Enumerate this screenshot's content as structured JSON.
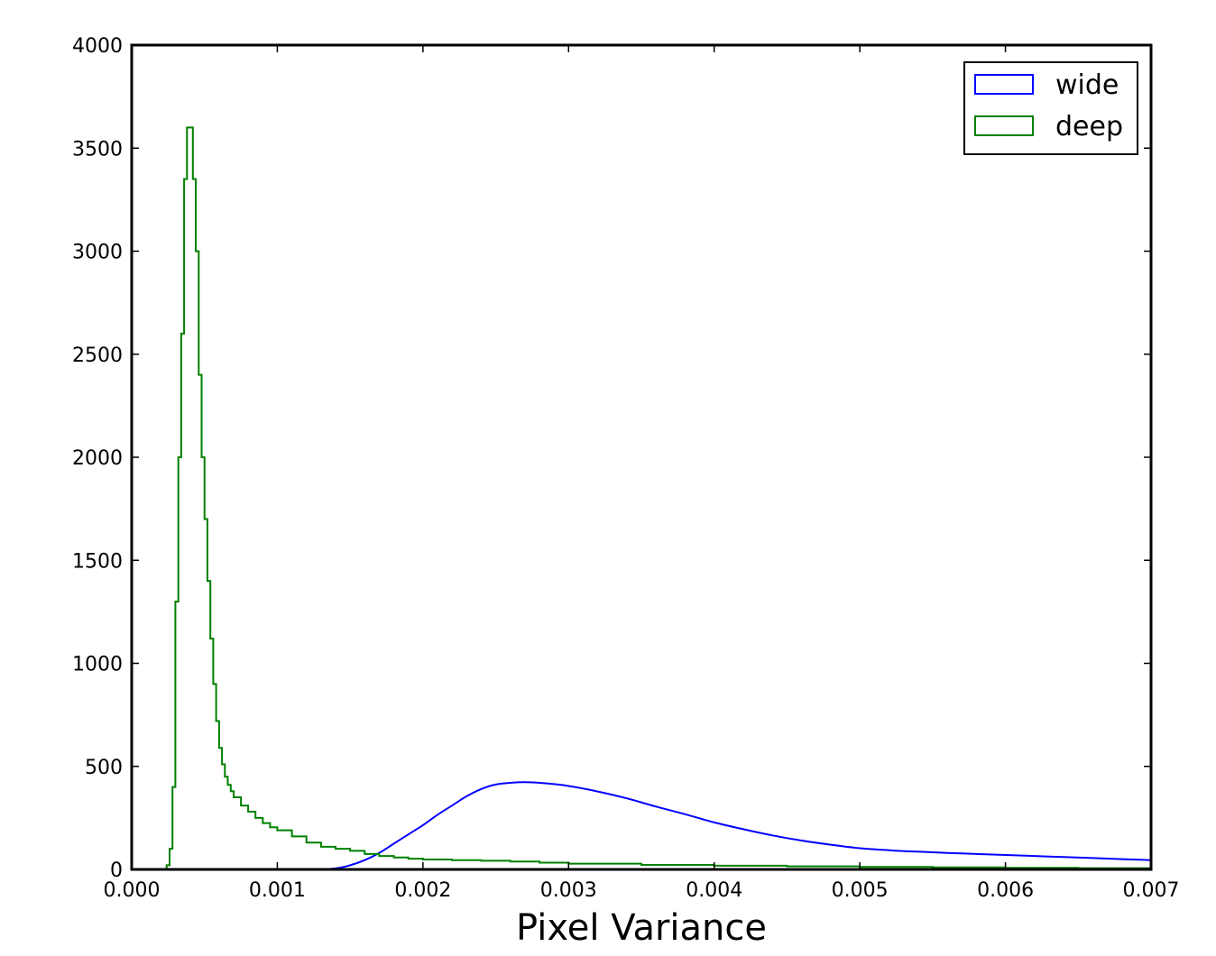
{
  "chart_data": {
    "type": "line",
    "title": "",
    "xlabel": "Pixel Variance",
    "ylabel": "",
    "xlim": [
      0.0,
      0.007
    ],
    "ylim": [
      0,
      4000
    ],
    "x_ticks": [
      "0.000",
      "0.001",
      "0.002",
      "0.003",
      "0.004",
      "0.005",
      "0.006",
      "0.007"
    ],
    "y_ticks": [
      "0",
      "500",
      "1000",
      "1500",
      "2000",
      "2500",
      "3000",
      "3500",
      "4000"
    ],
    "grid": false,
    "legend_position": "top-right",
    "series": [
      {
        "name": "wide",
        "color": "#0000ff",
        "style": "smooth",
        "x": [
          0.0013,
          0.0014,
          0.0015,
          0.0016,
          0.0017,
          0.0018,
          0.0019,
          0.002,
          0.0021,
          0.0022,
          0.0023,
          0.0024,
          0.0025,
          0.0026,
          0.0027,
          0.0028,
          0.0029,
          0.003,
          0.0032,
          0.0034,
          0.0036,
          0.0038,
          0.004,
          0.0042,
          0.0044,
          0.0046,
          0.0048,
          0.005,
          0.0052,
          0.0054,
          0.0056,
          0.0058,
          0.006,
          0.0062,
          0.0064,
          0.0066,
          0.0068,
          0.007
        ],
        "y": [
          0,
          5,
          20,
          45,
          80,
          125,
          170,
          215,
          265,
          310,
          355,
          390,
          412,
          420,
          423,
          420,
          414,
          405,
          378,
          345,
          305,
          268,
          228,
          195,
          165,
          140,
          120,
          103,
          93,
          86,
          80,
          75,
          70,
          65,
          60,
          55,
          50,
          45
        ]
      },
      {
        "name": "deep",
        "color": "#008000",
        "style": "step",
        "x": [
          0.0002,
          0.00022,
          0.00024,
          0.00026,
          0.00028,
          0.0003,
          0.00032,
          0.00034,
          0.00036,
          0.00038,
          0.0004,
          0.00042,
          0.00044,
          0.00046,
          0.00048,
          0.0005,
          0.00052,
          0.00054,
          0.00056,
          0.00058,
          0.0006,
          0.00062,
          0.00064,
          0.00066,
          0.00068,
          0.0007,
          0.00075,
          0.0008,
          0.00085,
          0.0009,
          0.00095,
          0.001,
          0.0011,
          0.0012,
          0.0013,
          0.0014,
          0.0015,
          0.0016,
          0.0017,
          0.0018,
          0.0019,
          0.002,
          0.0022,
          0.0024,
          0.0026,
          0.0028,
          0.003,
          0.0035,
          0.004,
          0.0045,
          0.005,
          0.0055,
          0.006,
          0.0065,
          0.007
        ],
        "y": [
          0,
          0,
          20,
          100,
          400,
          1300,
          2000,
          2600,
          3350,
          3600,
          3600,
          3350,
          3000,
          2400,
          2000,
          1700,
          1400,
          1120,
          900,
          720,
          590,
          510,
          450,
          410,
          380,
          350,
          310,
          280,
          250,
          225,
          205,
          190,
          160,
          130,
          110,
          100,
          90,
          75,
          65,
          58,
          52,
          48,
          45,
          42,
          38,
          33,
          28,
          22,
          18,
          15,
          12,
          10,
          8,
          6,
          5
        ]
      }
    ]
  }
}
